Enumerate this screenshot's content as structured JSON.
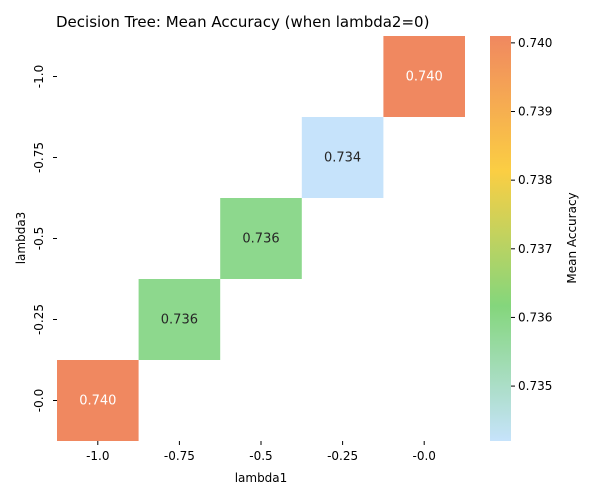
{
  "chart_data": {
    "type": "heatmap",
    "title": "Decision Tree: Mean Accuracy (when lambda2=0)",
    "xlabel": "lambda1",
    "ylabel": "lambda3",
    "x_categories": [
      "-1.0",
      "-0.75",
      "-0.5",
      "-0.25",
      "-0.0"
    ],
    "y_categories": [
      "-1.0",
      "-0.75",
      "-0.5",
      "-0.25",
      "-0.0"
    ],
    "cells": [
      {
        "x": "-0.0",
        "y": "-1.0",
        "value": 0.7401,
        "label": "0.740"
      },
      {
        "x": "-0.25",
        "y": "-0.75",
        "value": 0.7342,
        "label": "0.734"
      },
      {
        "x": "-0.5",
        "y": "-0.5",
        "value": 0.7359,
        "label": "0.736"
      },
      {
        "x": "-0.75",
        "y": "-0.25",
        "value": 0.7359,
        "label": "0.736"
      },
      {
        "x": "-1.0",
        "y": "-0.0",
        "value": 0.7401,
        "label": "0.740"
      }
    ],
    "colorbar": {
      "label": "Mean Accuracy",
      "range": [
        0.7342,
        0.7401
      ],
      "ticks": [
        "0.735",
        "0.736",
        "0.737",
        "0.738",
        "0.739",
        "0.740"
      ],
      "tick_values": [
        0.735,
        0.736,
        0.737,
        0.738,
        0.739,
        0.74
      ],
      "colors": [
        "#c6e3fb",
        "#84d67c",
        "#fbce43",
        "#f08860"
      ]
    },
    "grid": false,
    "legend": "colorbar-right"
  }
}
